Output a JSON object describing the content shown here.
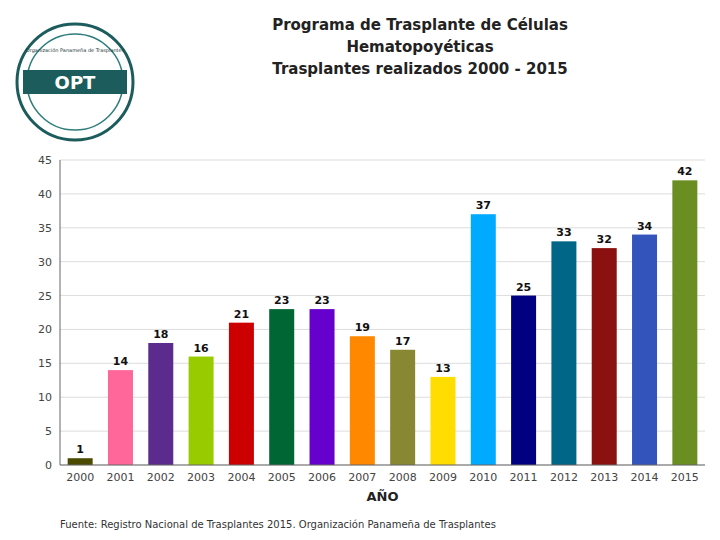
{
  "chart_data": {
    "type": "bar",
    "title": "Programa de Trasplante de Células\nHematopoyéticas\nTrasplantes realizados 2000 - 2015",
    "x_label": "AÑO",
    "categories": [
      "2000",
      "2001",
      "2002",
      "2003",
      "2004",
      "2005",
      "2006",
      "2007",
      "2008",
      "2009",
      "2010",
      "2011",
      "2012",
      "2013",
      "2014",
      "2015"
    ],
    "values": [
      1,
      14,
      18,
      16,
      21,
      23,
      23,
      19,
      17,
      13,
      37,
      25,
      33,
      32,
      34,
      42
    ],
    "colors": [
      "#4B4B00",
      "#FF6699",
      "#5B2C8D",
      "#99CC00",
      "#CC0000",
      "#006633",
      "#6600CC",
      "#FF8800",
      "#888833",
      "#FFDD00",
      "#00AAFF",
      "#000080",
      "#006688",
      "#8B1010",
      "#3355BB",
      "#6B8E23"
    ],
    "ylim": [
      0,
      45
    ],
    "yticks": [
      0,
      5,
      10,
      15,
      20,
      25,
      30,
      35,
      40,
      45
    ],
    "grid": true,
    "data_labels": true,
    "annotations": [
      "Fuente: Registro Nacional de Trasplantes 2015.   Organización Panameña de Trasplantes",
      "OPT",
      "Organización Panameña de Trasplantes"
    ]
  }
}
